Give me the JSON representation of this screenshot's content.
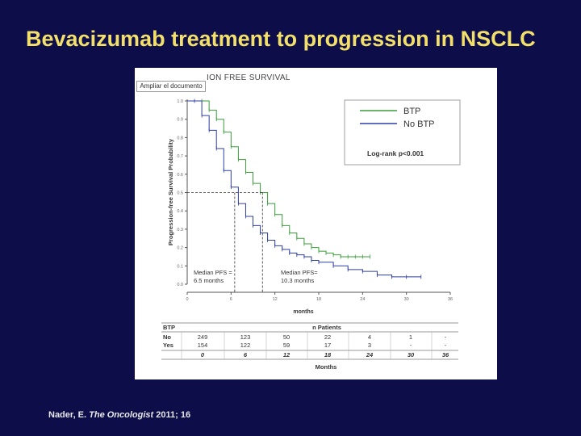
{
  "slide": {
    "title": "Bevacizumab treatment to progression in NSCLC",
    "citation_author": "Nader, E. ",
    "citation_journal": "The Oncologist",
    "citation_volume": " 2011; 16"
  },
  "tooltip": "Ampliar el documento",
  "figure_title": "ION FREE SURVIVAL",
  "colors": {
    "background": "#0d0d4a",
    "title": "#f2e06a",
    "btp": "#3a9e3a",
    "no_btp": "#2d3ea3"
  },
  "chart_data": {
    "type": "line",
    "title": "PROGRESSION FREE SURVIVAL",
    "xlabel": "months",
    "ylabel": "Progression-free Survival Probability",
    "xlim": [
      0,
      36
    ],
    "ylim": [
      0,
      1
    ],
    "x_ticks": [
      "0",
      "6",
      "12",
      "18",
      "24",
      "30",
      "36"
    ],
    "y_ticks": [
      "0.0",
      "0.1",
      "0.2",
      "0.3",
      "0.4",
      "0.5",
      "0.6",
      "0.7",
      "0.8",
      "0.9",
      "1.0"
    ],
    "grid": false,
    "legend_position": "top-right",
    "legend_note": "Log-rank p<0.001",
    "series": [
      {
        "name": "BTP",
        "color": "#3a9e3a",
        "x": [
          0,
          2,
          3,
          4,
          5,
          6,
          7,
          8,
          9,
          10,
          11,
          12,
          13,
          14,
          15,
          16,
          17,
          18,
          19,
          20,
          21,
          22,
          23,
          24,
          25
        ],
        "y": [
          1.0,
          1.0,
          0.95,
          0.9,
          0.83,
          0.75,
          0.68,
          0.61,
          0.55,
          0.5,
          0.44,
          0.38,
          0.32,
          0.28,
          0.25,
          0.22,
          0.2,
          0.18,
          0.17,
          0.16,
          0.15,
          0.15,
          0.15,
          0.15,
          0.15
        ]
      },
      {
        "name": "No BTP",
        "color": "#2d3ea3",
        "x": [
          0,
          1,
          2,
          3,
          4,
          5,
          6,
          7,
          8,
          9,
          10,
          11,
          12,
          13,
          14,
          15,
          16,
          17,
          18,
          20,
          22,
          24,
          26,
          28,
          30,
          32
        ],
        "y": [
          1.0,
          1.0,
          0.92,
          0.84,
          0.74,
          0.62,
          0.53,
          0.44,
          0.37,
          0.32,
          0.28,
          0.24,
          0.21,
          0.19,
          0.17,
          0.16,
          0.15,
          0.13,
          0.12,
          0.1,
          0.08,
          0.07,
          0.05,
          0.04,
          0.04,
          0.04
        ]
      }
    ],
    "annotations": [
      {
        "text_lines": [
          "Median PFS =",
          "6.5 months"
        ],
        "x": 6.5,
        "y": 0.5
      },
      {
        "text_lines": [
          "Median PFS=",
          "10.3 months"
        ],
        "x": 10.3,
        "y": 0.5
      }
    ],
    "risk_table": {
      "header_left": "BTP",
      "header_center": "n Patients",
      "rows": [
        {
          "label": "No",
          "values": [
            "249",
            "123",
            "50",
            "22",
            "4",
            "1",
            "-"
          ]
        },
        {
          "label": "Yes",
          "values": [
            "154",
            "122",
            "59",
            "17",
            "3",
            "-",
            "-"
          ]
        }
      ],
      "times": [
        "0",
        "6",
        "12",
        "18",
        "24",
        "30",
        "36"
      ],
      "footer": "Months"
    }
  }
}
